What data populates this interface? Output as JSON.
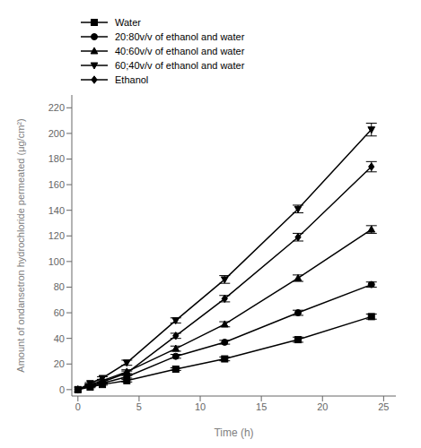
{
  "chart_data": {
    "type": "line",
    "x_label": "Time (h)",
    "y_label": "Amount of ondansetron hydrochloride permeated (μg/cm²)",
    "x": [
      0,
      1,
      2,
      4,
      8,
      12,
      18,
      24
    ],
    "series": [
      {
        "name": "Water",
        "color": "black",
        "marker": "square",
        "values": [
          0,
          2,
          4,
          7,
          16,
          24,
          39,
          57
        ],
        "yerr": [
          0,
          0.5,
          0.5,
          1,
          1,
          1.5,
          2,
          2
        ]
      },
      {
        "name": "20:80v/v of ethanol and water",
        "color": "black",
        "marker": "circle",
        "values": [
          0,
          3,
          5,
          10,
          26,
          37,
          60,
          82
        ],
        "yerr": [
          0,
          0.5,
          0.5,
          1,
          1.5,
          1.5,
          2,
          2
        ]
      },
      {
        "name": "40:60v/v of ethanol and water",
        "color": "black",
        "marker": "triangle",
        "values": [
          0,
          4,
          7,
          14,
          32,
          51,
          87,
          125
        ],
        "yerr": [
          0,
          0.5,
          1,
          1.5,
          2,
          2,
          2.5,
          3
        ]
      },
      {
        "name": "60;40v/v of ethanol and water",
        "color": "black",
        "marker": "triangle-down",
        "values": [
          0,
          5,
          9,
          21,
          54,
          86,
          141,
          203
        ],
        "yerr": [
          0,
          0.5,
          1,
          2,
          2,
          3,
          3,
          5
        ]
      },
      {
        "name": "Ethanol",
        "color": "black",
        "marker": "diamond",
        "values": [
          0,
          3,
          6,
          13,
          42,
          71,
          119,
          174
        ],
        "yerr": [
          0,
          0.5,
          1,
          1.5,
          2,
          2.5,
          3,
          4
        ]
      }
    ],
    "xlim": [
      -0.5,
      26
    ],
    "ylim": [
      -5,
      230
    ],
    "xticks": [
      0,
      5,
      10,
      15,
      20,
      25
    ],
    "yticks": [
      0,
      20,
      40,
      60,
      80,
      100,
      120,
      140,
      160,
      180,
      200,
      220
    ],
    "grid": false,
    "legend": "top"
  }
}
